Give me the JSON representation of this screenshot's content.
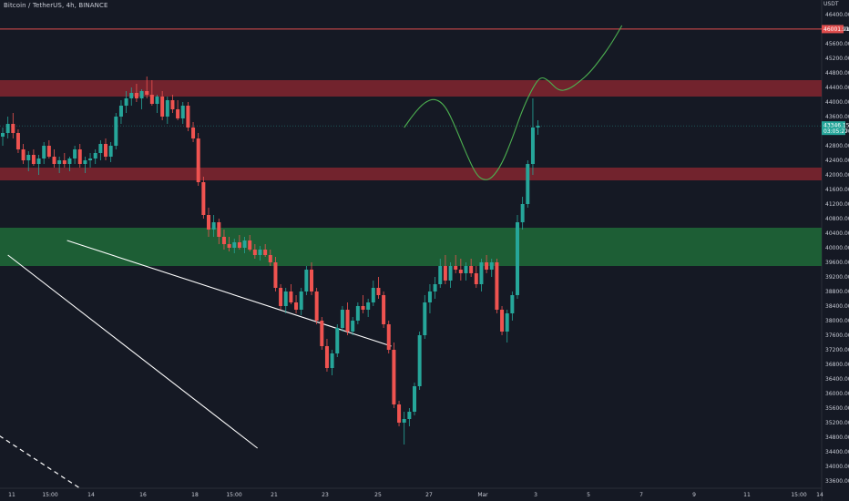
{
  "header": {
    "title": "Bitcoin / TetherUS, 4h, BINANCE"
  },
  "axis": {
    "unit": "USDT",
    "price_labels": [
      "46400.00",
      "46000.00",
      "45600.00",
      "45200.00",
      "44800.00",
      "44400.00",
      "44000.00",
      "43600.00",
      "43200.00",
      "42800.00",
      "42400.00",
      "42000.00",
      "41600.00",
      "41200.00",
      "40800.00",
      "40400.00",
      "40000.00",
      "39600.00",
      "39200.00",
      "38800.00",
      "38400.00",
      "38000.00",
      "37600.00",
      "37200.00",
      "36800.00",
      "36400.00",
      "36000.00",
      "35600.00",
      "35200.00",
      "34800.00",
      "34400.00",
      "34000.00",
      "33600.00"
    ],
    "time_labels": [
      "11",
      "15:00",
      "14",
      "16",
      "18",
      "15:00",
      "21",
      "23",
      "25",
      "27",
      "Mar",
      "3",
      "5",
      "7",
      "9",
      "11",
      "15:00",
      "14"
    ]
  },
  "badges": {
    "resistance_price": "46001.91",
    "current_price": "43346.15",
    "current_countdown": "03:05:27"
  },
  "colors": {
    "background": "#151924",
    "up": "#26a69a",
    "down": "#ef5350",
    "resistance_zone": "#8a2530",
    "support_zone": "#1e6b38",
    "resistance_line": "#e04e4e",
    "projection": "#4caf50",
    "trendline": "#ffffff"
  },
  "chart_data": {
    "type": "candlestick",
    "symbol": "Bitcoin / TetherUS",
    "interval": "4h",
    "exchange": "BINANCE",
    "y_axis": {
      "unit": "USDT",
      "range": [
        33400,
        46800
      ],
      "step": 400
    },
    "price_levels": {
      "resistance_line": 46001.91,
      "current_price": 43346.15
    },
    "zones": [
      {
        "kind": "resistance",
        "from": 44150,
        "to": 44600
      },
      {
        "kind": "resistance",
        "from": 41850,
        "to": 42200
      },
      {
        "kind": "support",
        "from": 39500,
        "to": 40550
      }
    ],
    "candles_ohlc": [
      [
        43050,
        43300,
        42800,
        43150
      ],
      [
        43150,
        43600,
        43000,
        43400
      ],
      [
        43400,
        43700,
        43000,
        43150
      ],
      [
        43150,
        43250,
        42600,
        42700
      ],
      [
        42700,
        42850,
        42300,
        42400
      ],
      [
        42400,
        42650,
        42100,
        42550
      ],
      [
        42550,
        42700,
        42250,
        42300
      ],
      [
        42300,
        42550,
        42000,
        42450
      ],
      [
        42450,
        42900,
        42300,
        42800
      ],
      [
        42800,
        42950,
        42450,
        42500
      ],
      [
        42500,
        42700,
        42200,
        42300
      ],
      [
        42300,
        42500,
        42050,
        42400
      ],
      [
        42400,
        42600,
        42200,
        42300
      ],
      [
        42300,
        42500,
        42100,
        42450
      ],
      [
        42450,
        42800,
        42300,
        42700
      ],
      [
        42700,
        42850,
        42200,
        42300
      ],
      [
        42300,
        42500,
        42050,
        42400
      ],
      [
        42400,
        42600,
        42200,
        42450
      ],
      [
        42450,
        42700,
        42300,
        42600
      ],
      [
        42600,
        42950,
        42400,
        42850
      ],
      [
        42850,
        43000,
        42400,
        42500
      ],
      [
        42500,
        42900,
        42350,
        42800
      ],
      [
        42800,
        43700,
        42700,
        43600
      ],
      [
        43600,
        44050,
        43400,
        43900
      ],
      [
        43900,
        44300,
        43700,
        44100
      ],
      [
        44100,
        44400,
        43900,
        44250
      ],
      [
        44250,
        44500,
        44000,
        44100
      ],
      [
        44100,
        44350,
        43800,
        44300
      ],
      [
        44300,
        44700,
        44100,
        44200
      ],
      [
        44200,
        44600,
        43900,
        43950
      ],
      [
        43950,
        44200,
        43700,
        44150
      ],
      [
        44150,
        44300,
        43500,
        43600
      ],
      [
        43600,
        44150,
        43400,
        44050
      ],
      [
        44050,
        44200,
        43700,
        43800
      ],
      [
        43800,
        44050,
        43500,
        43550
      ],
      [
        43550,
        44000,
        43400,
        43900
      ],
      [
        43900,
        44000,
        43200,
        43300
      ],
      [
        43300,
        43450,
        42900,
        43000
      ],
      [
        43000,
        43150,
        41700,
        41800
      ],
      [
        41800,
        41950,
        40800,
        40900
      ],
      [
        40900,
        41100,
        40300,
        40500
      ],
      [
        40500,
        40900,
        40300,
        40700
      ],
      [
        40700,
        40800,
        40100,
        40300
      ],
      [
        40300,
        40500,
        39950,
        40100
      ],
      [
        40100,
        40300,
        39900,
        40000
      ],
      [
        40000,
        40250,
        39850,
        40150
      ],
      [
        40150,
        40350,
        39950,
        40000
      ],
      [
        40000,
        40300,
        39850,
        40200
      ],
      [
        40200,
        40350,
        39900,
        39950
      ],
      [
        39950,
        40100,
        39700,
        39800
      ],
      [
        39800,
        40050,
        39650,
        39950
      ],
      [
        39950,
        40100,
        39750,
        39800
      ],
      [
        39800,
        39950,
        39500,
        39600
      ],
      [
        39600,
        39750,
        38800,
        38900
      ],
      [
        38900,
        39000,
        38300,
        38400
      ],
      [
        38400,
        38900,
        38200,
        38800
      ],
      [
        38800,
        39000,
        38450,
        38500
      ],
      [
        38500,
        38700,
        38200,
        38300
      ],
      [
        38300,
        38900,
        38150,
        38800
      ],
      [
        38800,
        39500,
        38700,
        39400
      ],
      [
        39400,
        39600,
        38700,
        38800
      ],
      [
        38800,
        38900,
        37900,
        38000
      ],
      [
        38000,
        38100,
        37200,
        37300
      ],
      [
        37300,
        37500,
        36600,
        36700
      ],
      [
        36700,
        37200,
        36500,
        37100
      ],
      [
        37100,
        37900,
        37000,
        37800
      ],
      [
        37800,
        38400,
        37700,
        38300
      ],
      [
        38300,
        38500,
        37600,
        37700
      ],
      [
        37700,
        38100,
        37600,
        38000
      ],
      [
        38000,
        38500,
        37900,
        38400
      ],
      [
        38400,
        38700,
        38200,
        38300
      ],
      [
        38300,
        38600,
        38100,
        38500
      ],
      [
        38500,
        39100,
        38400,
        38900
      ],
      [
        38900,
        39200,
        38600,
        38700
      ],
      [
        38700,
        38800,
        37800,
        37900
      ],
      [
        37900,
        38000,
        37100,
        37200
      ],
      [
        37200,
        37400,
        35600,
        35700
      ],
      [
        35700,
        35800,
        35100,
        35200
      ],
      [
        35200,
        35500,
        34600,
        35300
      ],
      [
        35300,
        35600,
        35100,
        35500
      ],
      [
        35500,
        36300,
        35400,
        36200
      ],
      [
        36200,
        37700,
        36100,
        37600
      ],
      [
        37600,
        38700,
        37500,
        38500
      ],
      [
        38500,
        39000,
        38200,
        38800
      ],
      [
        38800,
        39200,
        38600,
        39000
      ],
      [
        39000,
        39700,
        38900,
        39500
      ],
      [
        39500,
        39800,
        39000,
        39100
      ],
      [
        39100,
        39600,
        38900,
        39500
      ],
      [
        39500,
        39800,
        39300,
        39400
      ],
      [
        39400,
        39700,
        39100,
        39300
      ],
      [
        39300,
        39600,
        39100,
        39500
      ],
      [
        39500,
        39700,
        39200,
        39300
      ],
      [
        39300,
        39500,
        38900,
        39000
      ],
      [
        39000,
        39700,
        38800,
        39600
      ],
      [
        39600,
        39800,
        39300,
        39400
      ],
      [
        39400,
        39700,
        39200,
        39600
      ],
      [
        39600,
        39700,
        38200,
        38300
      ],
      [
        38300,
        38400,
        37600,
        37700
      ],
      [
        37700,
        38300,
        37400,
        38200
      ],
      [
        38200,
        38800,
        38000,
        38700
      ],
      [
        38700,
        40900,
        38600,
        40700
      ],
      [
        40700,
        41400,
        40500,
        41200
      ],
      [
        41200,
        42400,
        41100,
        42300
      ],
      [
        42300,
        44100,
        42000,
        43300
      ],
      [
        43300,
        43500,
        43100,
        43346.15
      ]
    ],
    "trendlines": [
      {
        "name": "",
        "from": [
          1.0,
          39800
        ],
        "to": [
          49.5,
          34500
        ]
      },
      {
        "name": "",
        "from": [
          12.5,
          40200
        ],
        "to": [
          75.5,
          37300
        ]
      }
    ],
    "projection_path": [
      [
        78.0,
        43300
      ],
      [
        80,
        43700
      ],
      [
        82,
        44000
      ],
      [
        84,
        44100
      ],
      [
        86,
        43900
      ],
      [
        88,
        43300
      ],
      [
        90,
        42600
      ],
      [
        92,
        42000
      ],
      [
        93.5,
        41850
      ],
      [
        95,
        41900
      ],
      [
        97,
        42300
      ],
      [
        99,
        43000
      ],
      [
        101,
        43800
      ],
      [
        103,
        44400
      ],
      [
        104.5,
        44700
      ],
      [
        106,
        44600
      ],
      [
        108,
        44300
      ],
      [
        110,
        44350
      ],
      [
        112,
        44550
      ],
      [
        114,
        44800
      ],
      [
        116,
        45150
      ],
      [
        118,
        45550
      ],
      [
        119.5,
        45900
      ],
      [
        120.3,
        46100
      ]
    ],
    "dashed_line": {
      "from": [
        -10.0,
        35700
      ],
      "to": [
        15.0,
        33400
      ]
    }
  }
}
